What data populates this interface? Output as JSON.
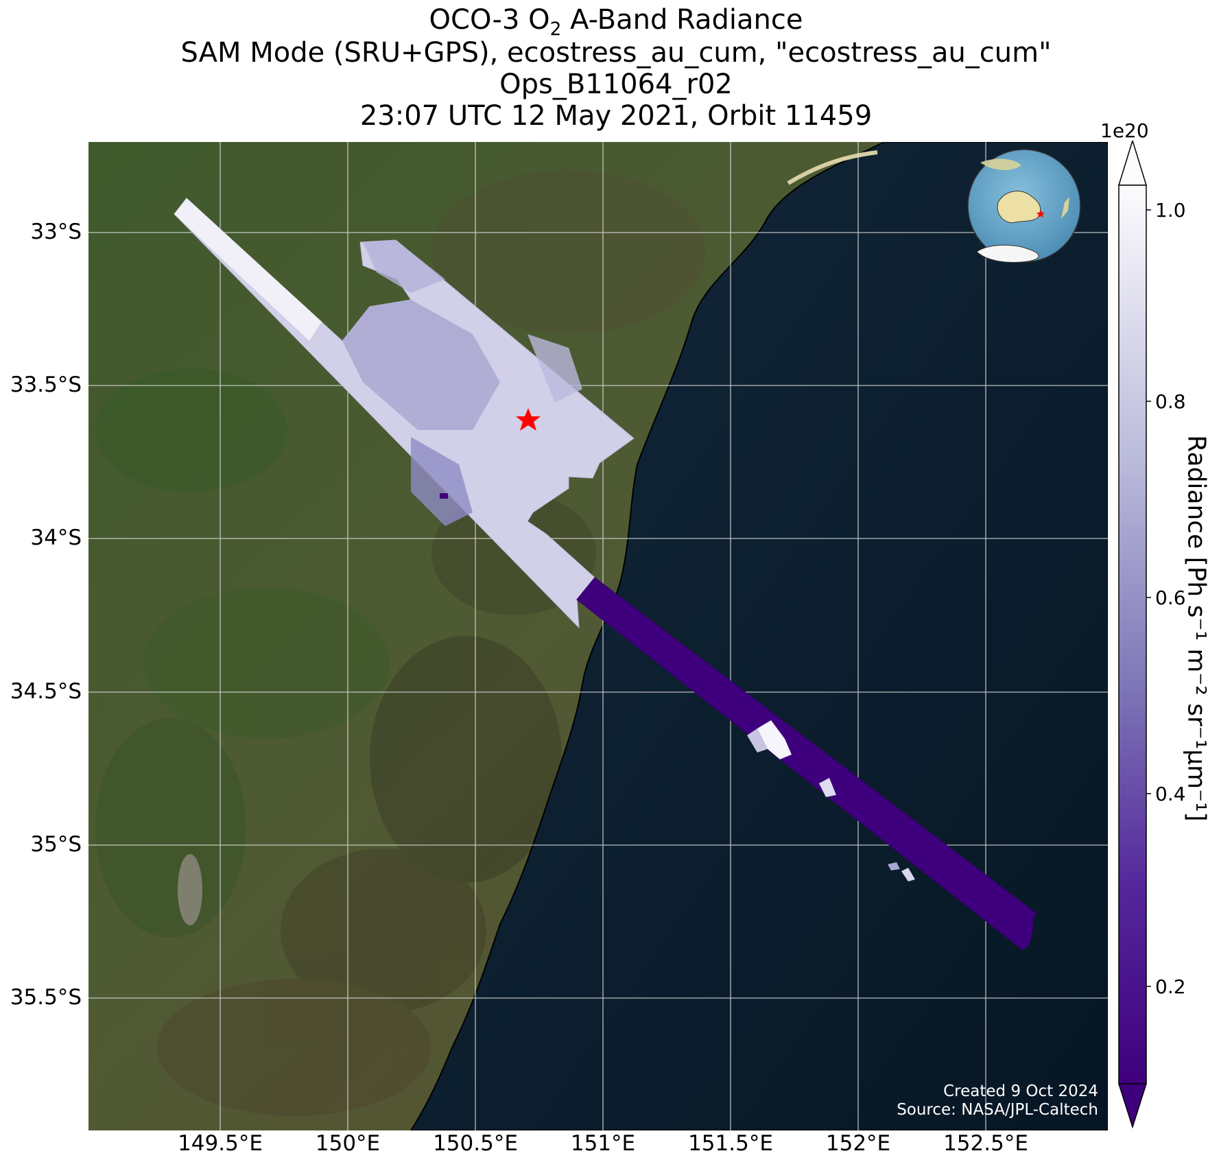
{
  "title": {
    "line1_prefix": "OCO-3 O",
    "line1_sub": "2",
    "line1_suffix": " A-Band Radiance",
    "line2": "SAM Mode (SRU+GPS), ecostress_au_cum, \"ecostress_au_cum\"",
    "line3": "Ops_B11064_r02",
    "line4": "23:07 UTC 12 May 2021, Orbit 11459"
  },
  "axes": {
    "lat_ticks": [
      "33°S",
      "33.5°S",
      "34°S",
      "34.5°S",
      "35°S",
      "35.5°S"
    ],
    "lon_ticks": [
      "149.5°E",
      "150°E",
      "150.5°E",
      "151°E",
      "151.5°E",
      "152°E",
      "152.5°E"
    ]
  },
  "colorbar": {
    "multiplier": "1e20",
    "ticks": [
      "0.2",
      "0.4",
      "0.6",
      "0.8",
      "1.0"
    ],
    "label": "Radiance [Ph s⁻¹ m⁻² sr⁻¹μm⁻¹]",
    "min_color": "#3f007d",
    "max_color": "#fcfbfd"
  },
  "target_marker": {
    "symbol": "star",
    "color": "#ff0000",
    "lat": -33.62,
    "lon": 150.71
  },
  "credit": {
    "created": "Created 9 Oct 2024",
    "source": "Source: NASA/JPL-Caltech"
  },
  "colors": {
    "land": "#4a4d2f",
    "ocean": "#0f2233",
    "gridline": "#d9d9d9",
    "globe_ocean": "#6aa6c8"
  }
}
